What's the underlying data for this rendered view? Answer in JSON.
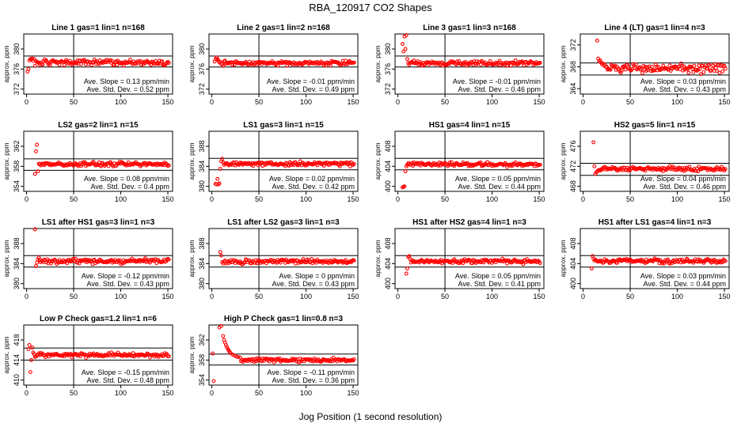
{
  "figure": {
    "title": "RBA_120917  CO2 Shapes",
    "xlabel": "Jog Position (1 second resolution)"
  },
  "chart_data": [
    {
      "type": "scatter",
      "title": "Line 1 gas=1 lin=1 n=168",
      "ylabel": "approx. ppm",
      "xlim": [
        -3,
        155
      ],
      "ylim": [
        371,
        383
      ],
      "xticks": [
        0,
        50,
        100,
        150
      ],
      "yticks": [
        372,
        376,
        380
      ],
      "hlines": [
        376.4,
        378.6
      ],
      "vline": 50,
      "plateau": 377.3,
      "noise": 0.25,
      "early": [
        [
          1,
          375.5
        ],
        [
          2,
          376.0
        ],
        [
          3,
          377.7
        ],
        [
          4,
          378.0
        ],
        [
          5,
          377.9
        ],
        [
          6,
          378.1
        ],
        [
          7,
          377.6
        ],
        [
          8,
          378.0
        ]
      ],
      "stats": [
        "Ave. Slope = 0.13  ppm/min",
        "Ave. Std. Dev. = 0.52  ppm"
      ]
    },
    {
      "type": "scatter",
      "title": "Line 2 gas=1 lin=2 n=168",
      "ylabel": "approx. ppm",
      "xlim": [
        -3,
        155
      ],
      "ylim": [
        371,
        383
      ],
      "xticks": [
        0,
        50,
        100,
        150
      ],
      "yticks": [
        372,
        376,
        380
      ],
      "hlines": [
        376.4,
        378.6
      ],
      "vline": 50,
      "plateau": 377.2,
      "noise": 0.22,
      "early": [
        [
          3,
          377.5
        ],
        [
          4,
          378.0
        ],
        [
          5,
          378.3
        ],
        [
          6,
          378.0
        ],
        [
          7,
          377.7
        ]
      ],
      "stats": [
        "Ave. Slope = -0.01  ppm/min",
        "Ave. Std. Dev. = 0.49  ppm"
      ]
    },
    {
      "type": "scatter",
      "title": "Line 3 gas=1 lin=3 n=168",
      "ylabel": "approx. ppm",
      "xlim": [
        -3,
        155
      ],
      "ylim": [
        371,
        383
      ],
      "xticks": [
        0,
        50,
        100,
        150
      ],
      "yticks": [
        372,
        376,
        380
      ],
      "hlines": [
        376.4,
        378.6
      ],
      "vline": 50,
      "plateau": 377.2,
      "noise": 0.22,
      "early": [
        [
          5,
          381.0
        ],
        [
          6,
          379.5
        ],
        [
          7,
          382.5
        ],
        [
          8,
          380.0
        ],
        [
          9,
          382.8
        ],
        [
          10,
          378.0
        ],
        [
          11,
          377.2
        ]
      ],
      "stats": [
        "Ave. Slope = -0.01  ppm/min",
        "Ave. Std. Dev. = 0.46  ppm"
      ]
    },
    {
      "type": "scatter",
      "title": "Line 4 (LT) gas=1 lin=4 n=3",
      "ylabel": "approx. ppm",
      "xlim": [
        -3,
        155
      ],
      "ylim": [
        363,
        374
      ],
      "xticks": [
        0,
        50,
        100,
        150
      ],
      "yticks": [
        364,
        368,
        372
      ],
      "hlines": [
        366.5,
        368.7
      ],
      "vline": 50,
      "plateau": 367.7,
      "noise": 0.4,
      "early": [
        [
          15,
          372.8
        ],
        [
          16,
          369.5
        ],
        [
          17,
          369.0
        ],
        [
          18,
          369.2
        ],
        [
          19,
          368.8
        ],
        [
          20,
          368.5
        ],
        [
          21,
          368.6
        ],
        [
          22,
          368.2
        ],
        [
          23,
          368.4
        ],
        [
          24,
          368.0
        ]
      ],
      "stats": [
        "Ave. Slope = 0.03  ppm/min",
        "Ave. Std. Dev. = 0.43  ppm"
      ]
    },
    {
      "type": "scatter",
      "title": "LS2 gas=2 lin=1 n=15",
      "ylabel": "approx. ppm",
      "xlim": [
        -3,
        155
      ],
      "ylim": [
        353,
        365
      ],
      "xticks": [
        0,
        50,
        100,
        150
      ],
      "yticks": [
        354,
        358,
        362
      ],
      "hlines": [
        357.2,
        359.5
      ],
      "vline": 50,
      "plateau": 358.4,
      "noise": 0.2,
      "early": [
        [
          9,
          356.5
        ],
        [
          10,
          361.0
        ],
        [
          11,
          362.3
        ],
        [
          12,
          357.0
        ],
        [
          13,
          358.5
        ]
      ],
      "stats": [
        "Ave. Slope = 0.08  ppm/min",
        "Ave. Std. Dev. = 0.4  ppm"
      ]
    },
    {
      "type": "scatter",
      "title": "LS1 gas=3 lin=1 n=15",
      "ylabel": "approx. ppm",
      "xlim": [
        -3,
        155
      ],
      "ylim": [
        379,
        391
      ],
      "xticks": [
        0,
        50,
        100,
        150
      ],
      "yticks": [
        380,
        384,
        388
      ],
      "hlines": [
        383.3,
        385.6
      ],
      "vline": 50,
      "plateau": 384.5,
      "noise": 0.2,
      "early": [
        [
          4,
          380.5
        ],
        [
          5,
          380.4
        ],
        [
          6,
          381.5
        ],
        [
          7,
          380.4
        ],
        [
          8,
          380.6
        ],
        [
          9,
          383.5
        ],
        [
          10,
          385.0
        ],
        [
          11,
          385.5
        ],
        [
          12,
          384.8
        ]
      ],
      "stats": [
        "Ave. Slope = 0.02  ppm/min",
        "Ave. Std. Dev. = 0.42  ppm"
      ]
    },
    {
      "type": "scatter",
      "title": "HS1 gas=4 lin=1 n=15",
      "ylabel": "approx. ppm",
      "xlim": [
        -3,
        155
      ],
      "ylim": [
        399,
        411
      ],
      "xticks": [
        0,
        50,
        100,
        150
      ],
      "yticks": [
        400,
        404,
        408
      ],
      "hlines": [
        403.3,
        405.6
      ],
      "vline": 50,
      "plateau": 404.4,
      "noise": 0.2,
      "early": [
        [
          5,
          399.8
        ],
        [
          6,
          399.9
        ],
        [
          7,
          400.0
        ],
        [
          8,
          403.0
        ],
        [
          9,
          404.0
        ],
        [
          10,
          404.3
        ]
      ],
      "stats": [
        "Ave. Slope = 0.05  ppm/min",
        "Ave. Std. Dev. = 0.44  ppm"
      ]
    },
    {
      "type": "scatter",
      "title": "HS2 gas=5 lin=1 n=15",
      "ylabel": "approx. ppm",
      "xlim": [
        -3,
        155
      ],
      "ylim": [
        467,
        479
      ],
      "xticks": [
        0,
        50,
        100,
        150
      ],
      "yticks": [
        468,
        472,
        476
      ],
      "hlines": [
        470.2,
        472.6
      ],
      "vline": 50,
      "plateau": 471.5,
      "noise": 0.2,
      "early": [
        [
          11,
          476.8
        ],
        [
          12,
          472.0
        ],
        [
          13,
          470.5
        ],
        [
          14,
          470.8
        ],
        [
          15,
          471.0
        ],
        [
          16,
          471.2
        ]
      ],
      "stats": [
        "Ave. Slope = 0.04  ppm/min",
        "Ave. Std. Dev. = 0.46  ppm"
      ]
    },
    {
      "type": "scatter",
      "title": "LS1 after HS1 gas=3 lin=1 n=3",
      "ylabel": "approx. ppm",
      "xlim": [
        -3,
        155
      ],
      "ylim": [
        379,
        391
      ],
      "xticks": [
        0,
        50,
        100,
        150
      ],
      "yticks": [
        380,
        384,
        388
      ],
      "hlines": [
        383.3,
        385.6
      ],
      "vline": 50,
      "plateau": 384.5,
      "noise": 0.25,
      "early": [
        [
          9,
          391.0
        ],
        [
          10,
          383.5
        ],
        [
          11,
          384.2
        ],
        [
          12,
          384.8
        ],
        [
          13,
          385.2
        ]
      ],
      "stats": [
        "Ave. Slope = -0.12  ppm/min",
        "Ave. Std. Dev. = 0.43  ppm"
      ]
    },
    {
      "type": "scatter",
      "title": "LS1 after LS2 gas=3 lin=1 n=3",
      "ylabel": "approx. ppm",
      "xlim": [
        -3,
        155
      ],
      "ylim": [
        379,
        391
      ],
      "xticks": [
        0,
        50,
        100,
        150
      ],
      "yticks": [
        380,
        384,
        388
      ],
      "hlines": [
        383.3,
        385.6
      ],
      "vline": 50,
      "plateau": 384.4,
      "noise": 0.22,
      "early": [
        [
          9,
          386.3
        ],
        [
          10,
          385.6
        ],
        [
          11,
          384.3
        ],
        [
          12,
          384.0
        ],
        [
          13,
          384.4
        ]
      ],
      "stats": [
        "Ave. Slope = 0  ppm/min",
        "Ave. Std. Dev. = 0.43  ppm"
      ]
    },
    {
      "type": "scatter",
      "title": "HS1 after HS2 gas=4 lin=1 n=3",
      "ylabel": "approx. ppm",
      "xlim": [
        -3,
        155
      ],
      "ylim": [
        399,
        411
      ],
      "xticks": [
        0,
        50,
        100,
        150
      ],
      "yticks": [
        400,
        404,
        408
      ],
      "hlines": [
        403.3,
        405.6
      ],
      "vline": 50,
      "plateau": 404.5,
      "noise": 0.22,
      "early": [
        [
          9,
          402.0
        ],
        [
          10,
          403.0
        ],
        [
          11,
          405.3
        ],
        [
          12,
          405.5
        ],
        [
          13,
          404.9
        ]
      ],
      "stats": [
        "Ave. Slope = 0.05  ppm/min",
        "Ave. Std. Dev. = 0.41  ppm"
      ]
    },
    {
      "type": "scatter",
      "title": "HS1 after LS1 gas=4 lin=1 n=3",
      "ylabel": "approx. ppm",
      "xlim": [
        -3,
        155
      ],
      "ylim": [
        399,
        411
      ],
      "xticks": [
        0,
        50,
        100,
        150
      ],
      "yticks": [
        400,
        404,
        408
      ],
      "hlines": [
        403.3,
        405.6
      ],
      "vline": 50,
      "plateau": 404.5,
      "noise": 0.22,
      "early": [
        [
          9,
          403.0
        ],
        [
          10,
          405.5
        ],
        [
          11,
          405.0
        ],
        [
          12,
          404.6
        ]
      ],
      "stats": [
        "Ave. Slope = 0.03  ppm/min",
        "Ave. Std. Dev. = 0.44  ppm"
      ]
    },
    {
      "type": "scatter",
      "title": "Low P Check gas=1.2 lin=1 n=6",
      "ylabel": "approx. ppm",
      "xlim": [
        -3,
        155
      ],
      "ylim": [
        409,
        421
      ],
      "xticks": [
        0,
        50,
        100,
        150
      ],
      "yticks": [
        410,
        414,
        418
      ],
      "hlines": [
        414.0,
        416.4
      ],
      "vline": 50,
      "plateau": 415.0,
      "noise": 0.2,
      "early": [
        [
          2,
          416.2
        ],
        [
          3,
          417.0
        ],
        [
          4,
          411.6
        ],
        [
          5,
          414.0
        ],
        [
          6,
          416.5
        ],
        [
          7,
          415.5
        ]
      ],
      "stats": [
        "Ave. Slope = -0.15  ppm/min",
        "Ave. Std. Dev. = 0.48  ppm"
      ]
    },
    {
      "type": "scatter",
      "title": "High P Check gas=1 lin=0.8 n=3",
      "ylabel": "approx. ppm",
      "xlim": [
        -3,
        155
      ],
      "ylim": [
        353,
        365
      ],
      "xticks": [
        0,
        50,
        100,
        150
      ],
      "yticks": [
        354,
        358,
        362
      ],
      "hlines": [
        357.0,
        359.2
      ],
      "vline": 50,
      "plateau": 358.0,
      "noise": 0.2,
      "early": [
        [
          1,
          359.3
        ],
        [
          2,
          353.8
        ],
        [
          8,
          364.5
        ],
        [
          10,
          364.8
        ],
        [
          12,
          362.8
        ],
        [
          13,
          362.0
        ],
        [
          14,
          361.5
        ],
        [
          15,
          361.0
        ],
        [
          16,
          360.6
        ],
        [
          17,
          360.2
        ],
        [
          18,
          359.9
        ],
        [
          19,
          359.6
        ],
        [
          20,
          359.4
        ],
        [
          22,
          359.1
        ],
        [
          24,
          358.9
        ],
        [
          26,
          358.7
        ],
        [
          28,
          358.6
        ],
        [
          30,
          358.5
        ]
      ],
      "stats": [
        "Ave. Slope = -0.11  ppm/min",
        "Ave. Std. Dev. = 0.36  ppm"
      ]
    }
  ],
  "colors": {
    "points": "#ff0000",
    "axes": "#000000",
    "background": "#ffffff"
  }
}
